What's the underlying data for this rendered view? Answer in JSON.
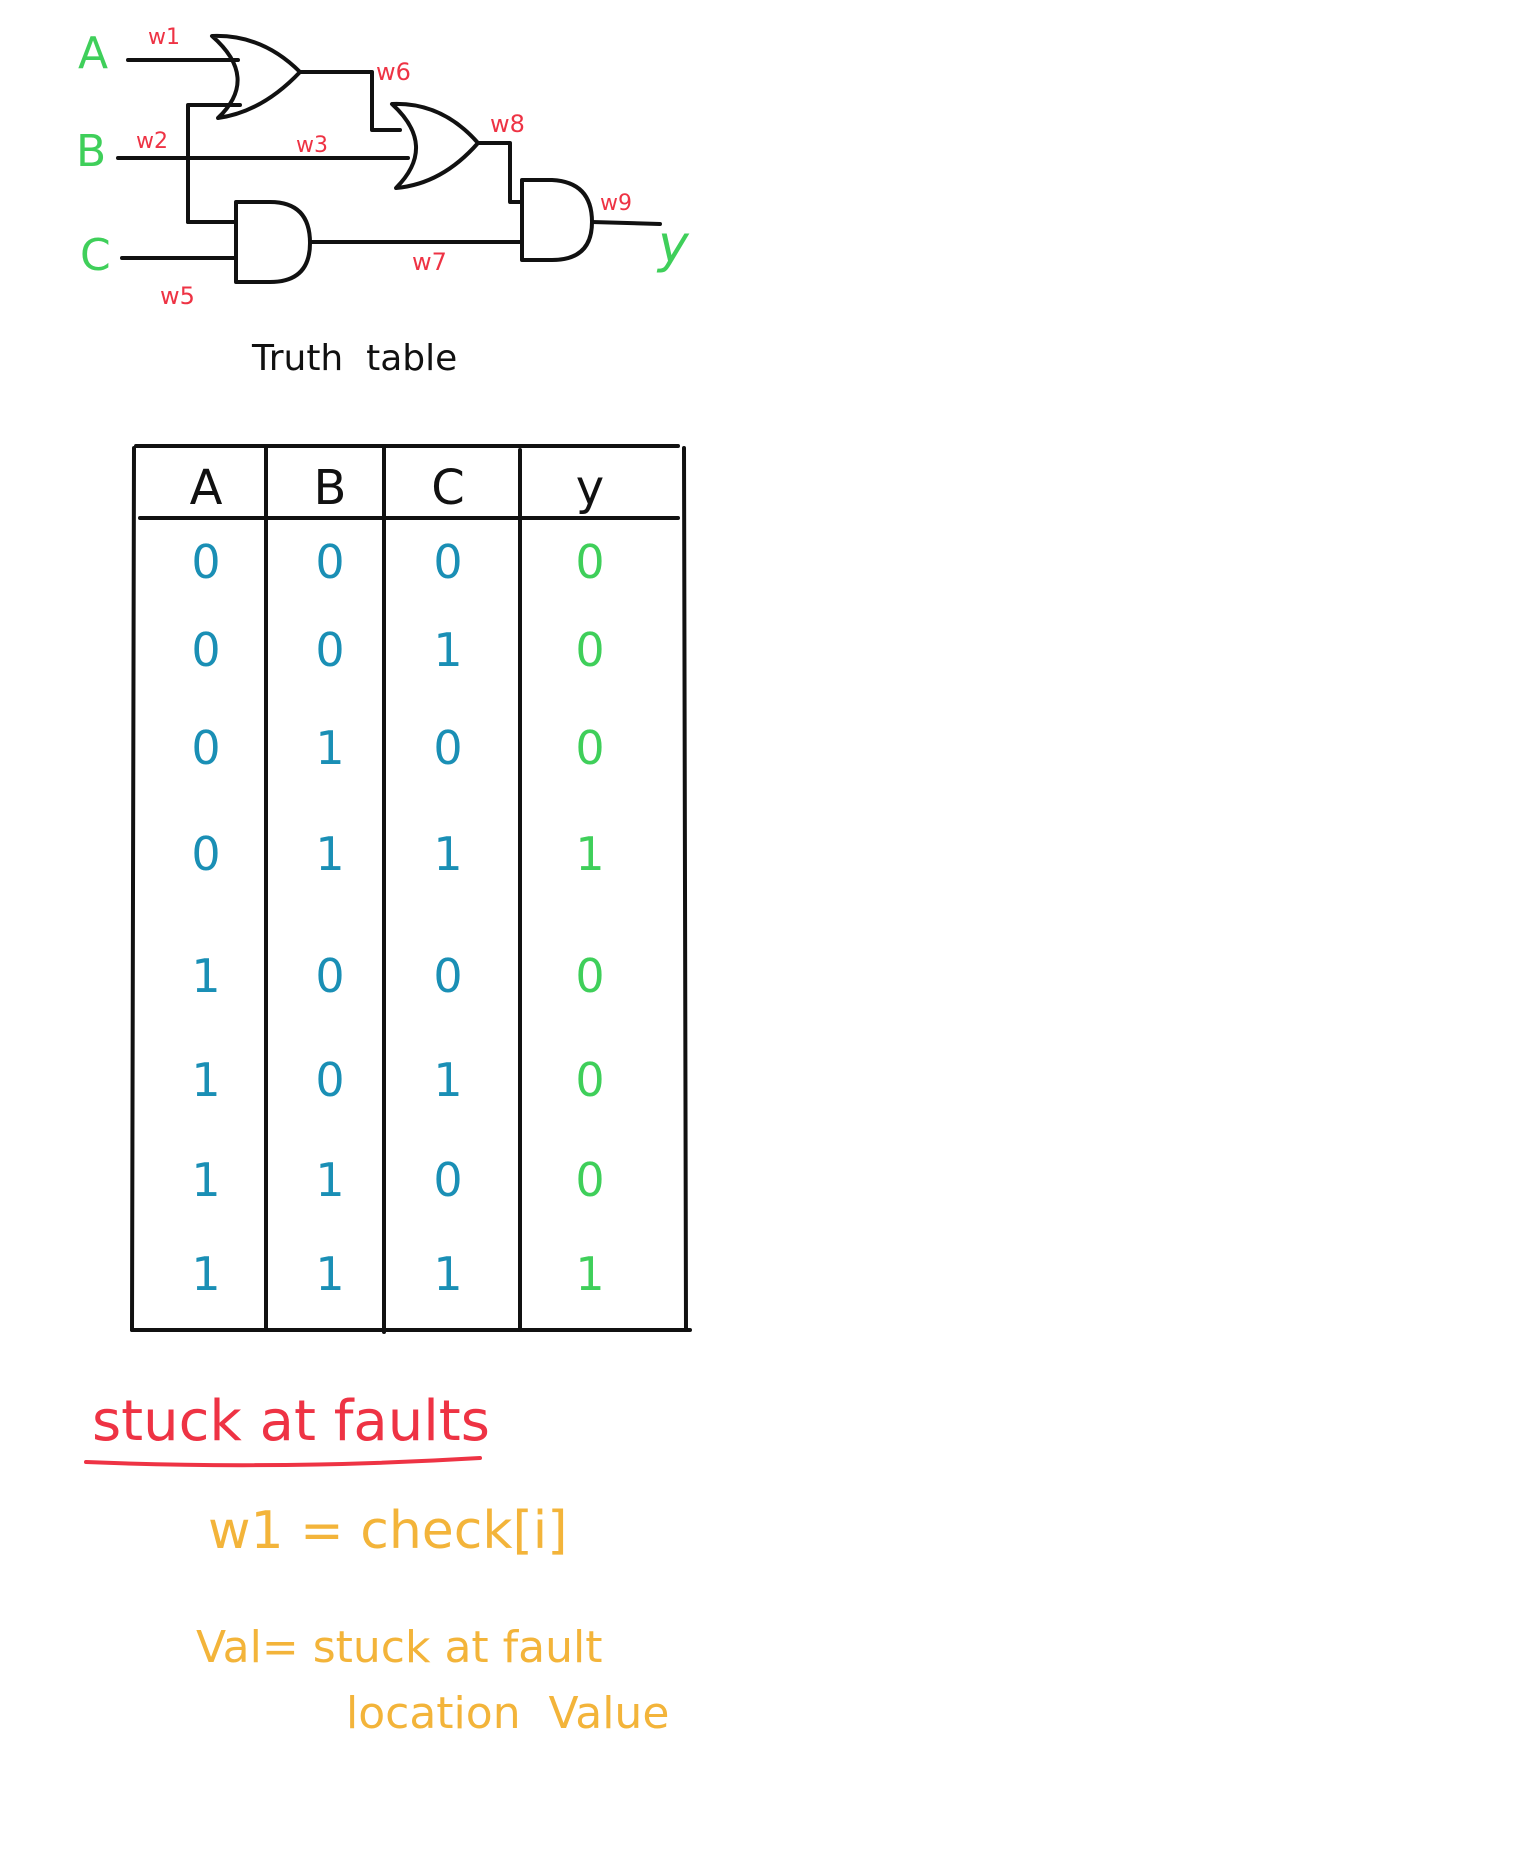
{
  "circuit": {
    "inputs": [
      "A",
      "B",
      "C"
    ],
    "output": "y",
    "wires": [
      "w1",
      "w2",
      "w3",
      "w5",
      "w6",
      "w7",
      "w8",
      "w9"
    ],
    "gates": [
      {
        "type": "OR",
        "inputs": [
          "w1",
          "w2"
        ],
        "output": "w6"
      },
      {
        "type": "OR",
        "inputs": [
          "w6",
          "w3"
        ],
        "output": "w8"
      },
      {
        "type": "AND",
        "inputs": [
          "w2",
          "w5"
        ],
        "output": "w7"
      },
      {
        "type": "AND",
        "inputs": [
          "w8",
          "w7"
        ],
        "output": "w9"
      }
    ]
  },
  "truth_table": {
    "title": "Truth  table",
    "headers": [
      "A",
      "B",
      "C",
      "y"
    ],
    "rows": [
      [
        "0",
        "0",
        "0",
        "0"
      ],
      [
        "0",
        "0",
        "1",
        "0"
      ],
      [
        "0",
        "1",
        "0",
        "0"
      ],
      [
        "0",
        "1",
        "1",
        "1"
      ],
      [
        "1",
        "0",
        "0",
        "0"
      ],
      [
        "1",
        "0",
        "1",
        "0"
      ],
      [
        "1",
        "1",
        "0",
        "0"
      ],
      [
        "1",
        "1",
        "1",
        "1"
      ]
    ]
  },
  "notes": {
    "heading": "stuck at faults",
    "line1": "w1 = check[i]",
    "line2": "Val= stuck at fault",
    "line3": "location  Value"
  },
  "colors": {
    "ink": "#111111",
    "input_label": "#3fcf5a",
    "wire_label": "#ee3344",
    "table_inputs": "#1a8fb5",
    "table_output": "#3fcf5a",
    "heading": "#ee3344",
    "notes": "#f3b43a"
  }
}
